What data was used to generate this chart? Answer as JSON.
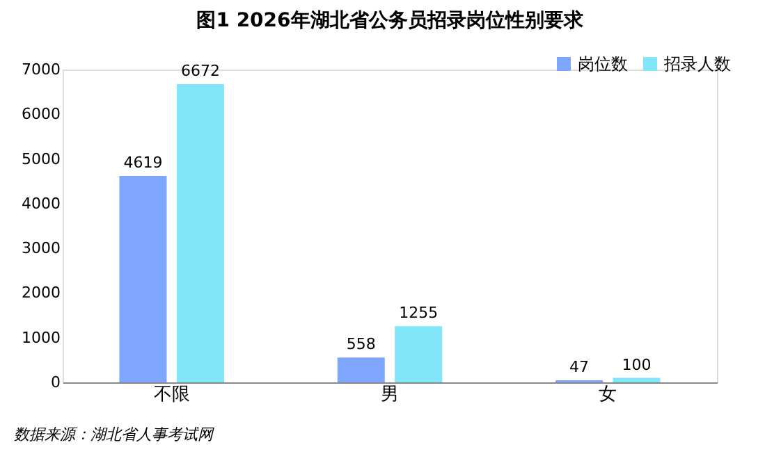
{
  "chart_data": {
    "type": "bar",
    "title": "图1  2026年湖北省公务员招录岗位性别要求",
    "categories": [
      "不限",
      "男",
      "女"
    ],
    "series": [
      {
        "name": "岗位数",
        "color": "#7fa6ff",
        "values": [
          4619,
          558,
          47
        ]
      },
      {
        "name": "招录人数",
        "color": "#80e6f8",
        "values": [
          6672,
          1255,
          100
        ]
      }
    ],
    "ylim": [
      0,
      7000
    ],
    "yticks": [
      0,
      1000,
      2000,
      3000,
      4000,
      5000,
      6000,
      7000
    ],
    "grid": false,
    "legend": "top right",
    "data_labels": true,
    "annotations": [
      "数据来源：湖北省人事考试网"
    ]
  }
}
